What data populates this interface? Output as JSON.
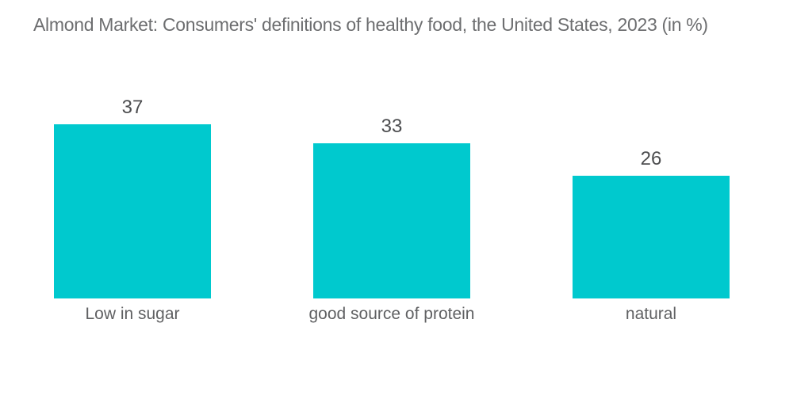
{
  "title": "Almond Market: Consumers' definitions of healthy food, the United States, 2023 (in %)",
  "colors": {
    "background": "#ffffff",
    "bar": "#00C9CE",
    "title_text": "#6d6e70",
    "value_text": "#4c4d4f",
    "category_text": "#606163"
  },
  "chart_data": {
    "type": "bar",
    "title": "Almond Market: Consumers' definitions of healthy food, the United States, 2023 (in %)",
    "categories": [
      "Low in sugar",
      "good source of protein",
      "natural"
    ],
    "values": [
      37,
      33,
      26
    ],
    "xlabel": "",
    "ylabel": "",
    "ylim": [
      0,
      40
    ],
    "grid": false,
    "legend": false,
    "axes_visible": false,
    "data_labels_position": "above bars",
    "bar_color": "#00C9CE"
  }
}
